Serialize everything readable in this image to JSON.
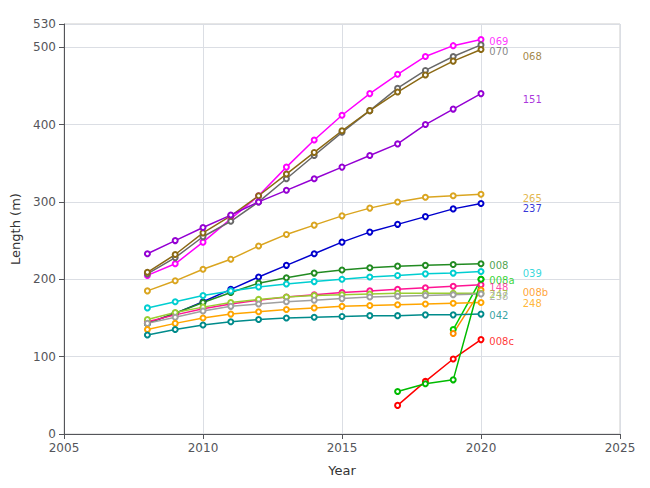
{
  "chart_data": {
    "type": "line",
    "x_label": "Year",
    "y_label": "Length (m)",
    "marker": "circle",
    "grid": true,
    "xlim": [
      2005,
      2025
    ],
    "ylim": [
      0,
      530
    ],
    "xticks": [
      2005,
      2010,
      2015,
      2020,
      2025
    ],
    "yticks": [
      0,
      100,
      200,
      300,
      400,
      500
    ],
    "series": [
      {
        "color": "#FF00FF",
        "x": [
          2008,
          2009,
          2010,
          2011,
          2012,
          2013,
          2014,
          2015,
          2016,
          2017,
          2018,
          2019,
          2020
        ],
        "values": [
          205,
          220,
          248,
          278,
          308,
          345,
          380,
          412,
          440,
          465,
          488,
          502,
          510
        ]
      },
      {
        "color": "#696969",
        "x": [
          2008,
          2009,
          2010,
          2011,
          2012,
          2013,
          2014,
          2015,
          2016,
          2017,
          2018,
          2019,
          2020
        ],
        "values": [
          207,
          228,
          255,
          275,
          300,
          330,
          360,
          390,
          418,
          447,
          470,
          488,
          503
        ]
      },
      {
        "color": "#8B6914",
        "x": [
          2008,
          2009,
          2010,
          2011,
          2012,
          2013,
          2014,
          2015,
          2016,
          2017,
          2018,
          2019,
          2020
        ],
        "values": [
          209,
          232,
          260,
          282,
          308,
          336,
          364,
          392,
          418,
          442,
          464,
          482,
          497
        ]
      },
      {
        "color": "#9400D3",
        "x": [
          2008,
          2009,
          2010,
          2011,
          2012,
          2013,
          2014,
          2015,
          2016,
          2017,
          2018,
          2019,
          2020
        ],
        "values": [
          233,
          250,
          267,
          283,
          300,
          315,
          330,
          345,
          360,
          375,
          400,
          420,
          440
        ]
      },
      {
        "color": "#DAA520",
        "x": [
          2008,
          2009,
          2010,
          2011,
          2012,
          2013,
          2014,
          2015,
          2016,
          2017,
          2018,
          2019,
          2020
        ],
        "values": [
          185,
          198,
          213,
          226,
          243,
          258,
          270,
          282,
          292,
          300,
          306,
          308,
          310
        ]
      },
      {
        "color": "#0000CD",
        "x": [
          2008,
          2009,
          2010,
          2011,
          2012,
          2013,
          2014,
          2015,
          2016,
          2017,
          2018,
          2019,
          2020
        ],
        "values": [
          143,
          156,
          171,
          187,
          203,
          218,
          233,
          248,
          261,
          271,
          281,
          291,
          298
        ]
      },
      {
        "color": "#228B22",
        "x": [
          2008,
          2009,
          2010,
          2011,
          2012,
          2013,
          2014,
          2015,
          2016,
          2017,
          2018,
          2019,
          2020
        ],
        "values": [
          143,
          156,
          170,
          183,
          195,
          202,
          208,
          212,
          215,
          217,
          218,
          219,
          220
        ]
      },
      {
        "color": "#00CED1",
        "x": [
          2008,
          2009,
          2010,
          2011,
          2012,
          2013,
          2014,
          2015,
          2016,
          2017,
          2018,
          2019,
          2020
        ],
        "values": [
          163,
          171,
          179,
          185,
          190,
          194,
          197,
          200,
          203,
          205,
          207,
          208,
          210
        ]
      },
      {
        "color": "#00CC00",
        "x": [
          2019,
          2020
        ],
        "values": [
          135,
          200
        ]
      },
      {
        "color": "#FF1493",
        "x": [
          2008,
          2009,
          2010,
          2011,
          2012,
          2013,
          2014,
          2015,
          2016,
          2017,
          2018,
          2019,
          2020
        ],
        "values": [
          145,
          154,
          162,
          168,
          173,
          177,
          180,
          183,
          185,
          187,
          189,
          191,
          193
        ]
      },
      {
        "color": "#FF8C00",
        "x": [
          2019,
          2020
        ],
        "values": [
          130,
          186
        ]
      },
      {
        "color": "#9ACD32",
        "x": [
          2008,
          2009,
          2010,
          2011,
          2012,
          2013,
          2014,
          2015,
          2016,
          2017,
          2018,
          2019,
          2020
        ],
        "values": [
          148,
          157,
          164,
          170,
          174,
          177,
          179,
          180,
          181,
          182,
          182,
          182,
          182
        ]
      },
      {
        "color": "#A0A0A0",
        "x": [
          2008,
          2009,
          2010,
          2011,
          2012,
          2013,
          2014,
          2015,
          2016,
          2017,
          2018,
          2019,
          2020
        ],
        "values": [
          143,
          151,
          159,
          165,
          168,
          171,
          173,
          175,
          177,
          178,
          179,
          180,
          181
        ]
      },
      {
        "color": "#FFA500",
        "x": [
          2008,
          2009,
          2010,
          2011,
          2012,
          2013,
          2014,
          2015,
          2016,
          2017,
          2018,
          2019,
          2020
        ],
        "values": [
          135,
          143,
          150,
          155,
          158,
          161,
          163,
          165,
          166,
          167,
          168,
          169,
          170
        ]
      },
      {
        "color": "#008B8B",
        "x": [
          2008,
          2009,
          2010,
          2011,
          2012,
          2013,
          2014,
          2015,
          2016,
          2017,
          2018,
          2019,
          2020
        ],
        "values": [
          128,
          135,
          141,
          145,
          148,
          150,
          151,
          152,
          153,
          153,
          154,
          154,
          155
        ]
      },
      {
        "color": "#FF0000",
        "x": [
          2017,
          2018,
          2019,
          2020
        ],
        "values": [
          37,
          68,
          97,
          122
        ]
      },
      {
        "color": "#00BB00",
        "x": [
          2017,
          2018,
          2019,
          2020
        ],
        "values": [
          55,
          65,
          70,
          200
        ]
      }
    ],
    "annotations": [
      {
        "text": "069",
        "x": 2020.3,
        "y": 507,
        "color": "#FF00FF"
      },
      {
        "text": "070",
        "x": 2020.3,
        "y": 495,
        "color": "#696969"
      },
      {
        "text": "068",
        "x": 2021.5,
        "y": 488,
        "color": "#8B6914"
      },
      {
        "text": "151",
        "x": 2021.5,
        "y": 432,
        "color": "#9400D3"
      },
      {
        "text": "265",
        "x": 2021.5,
        "y": 305,
        "color": "#DAA520"
      },
      {
        "text": "237",
        "x": 2021.5,
        "y": 292,
        "color": "#0000CD"
      },
      {
        "text": "008",
        "x": 2020.3,
        "y": 218,
        "color": "#228B22"
      },
      {
        "text": "039",
        "x": 2021.5,
        "y": 207,
        "color": "#00CED1"
      },
      {
        "text": "008a",
        "x": 2020.3,
        "y": 198,
        "color": "#00CC00"
      },
      {
        "text": "148",
        "x": 2020.3,
        "y": 190,
        "color": "#FF1493"
      },
      {
        "text": "008b",
        "x": 2021.5,
        "y": 183,
        "color": "#FF8C00"
      },
      {
        "text": "247",
        "x": 2020.3,
        "y": 180,
        "color": "#9ACD32"
      },
      {
        "text": "238",
        "x": 2020.3,
        "y": 178,
        "color": "#A0A0A0"
      },
      {
        "text": "248",
        "x": 2021.5,
        "y": 169,
        "color": "#FFA500"
      },
      {
        "text": "042",
        "x": 2020.3,
        "y": 153,
        "color": "#008B8B"
      },
      {
        "text": "008c",
        "x": 2020.3,
        "y": 120,
        "color": "#FF0000"
      }
    ]
  }
}
